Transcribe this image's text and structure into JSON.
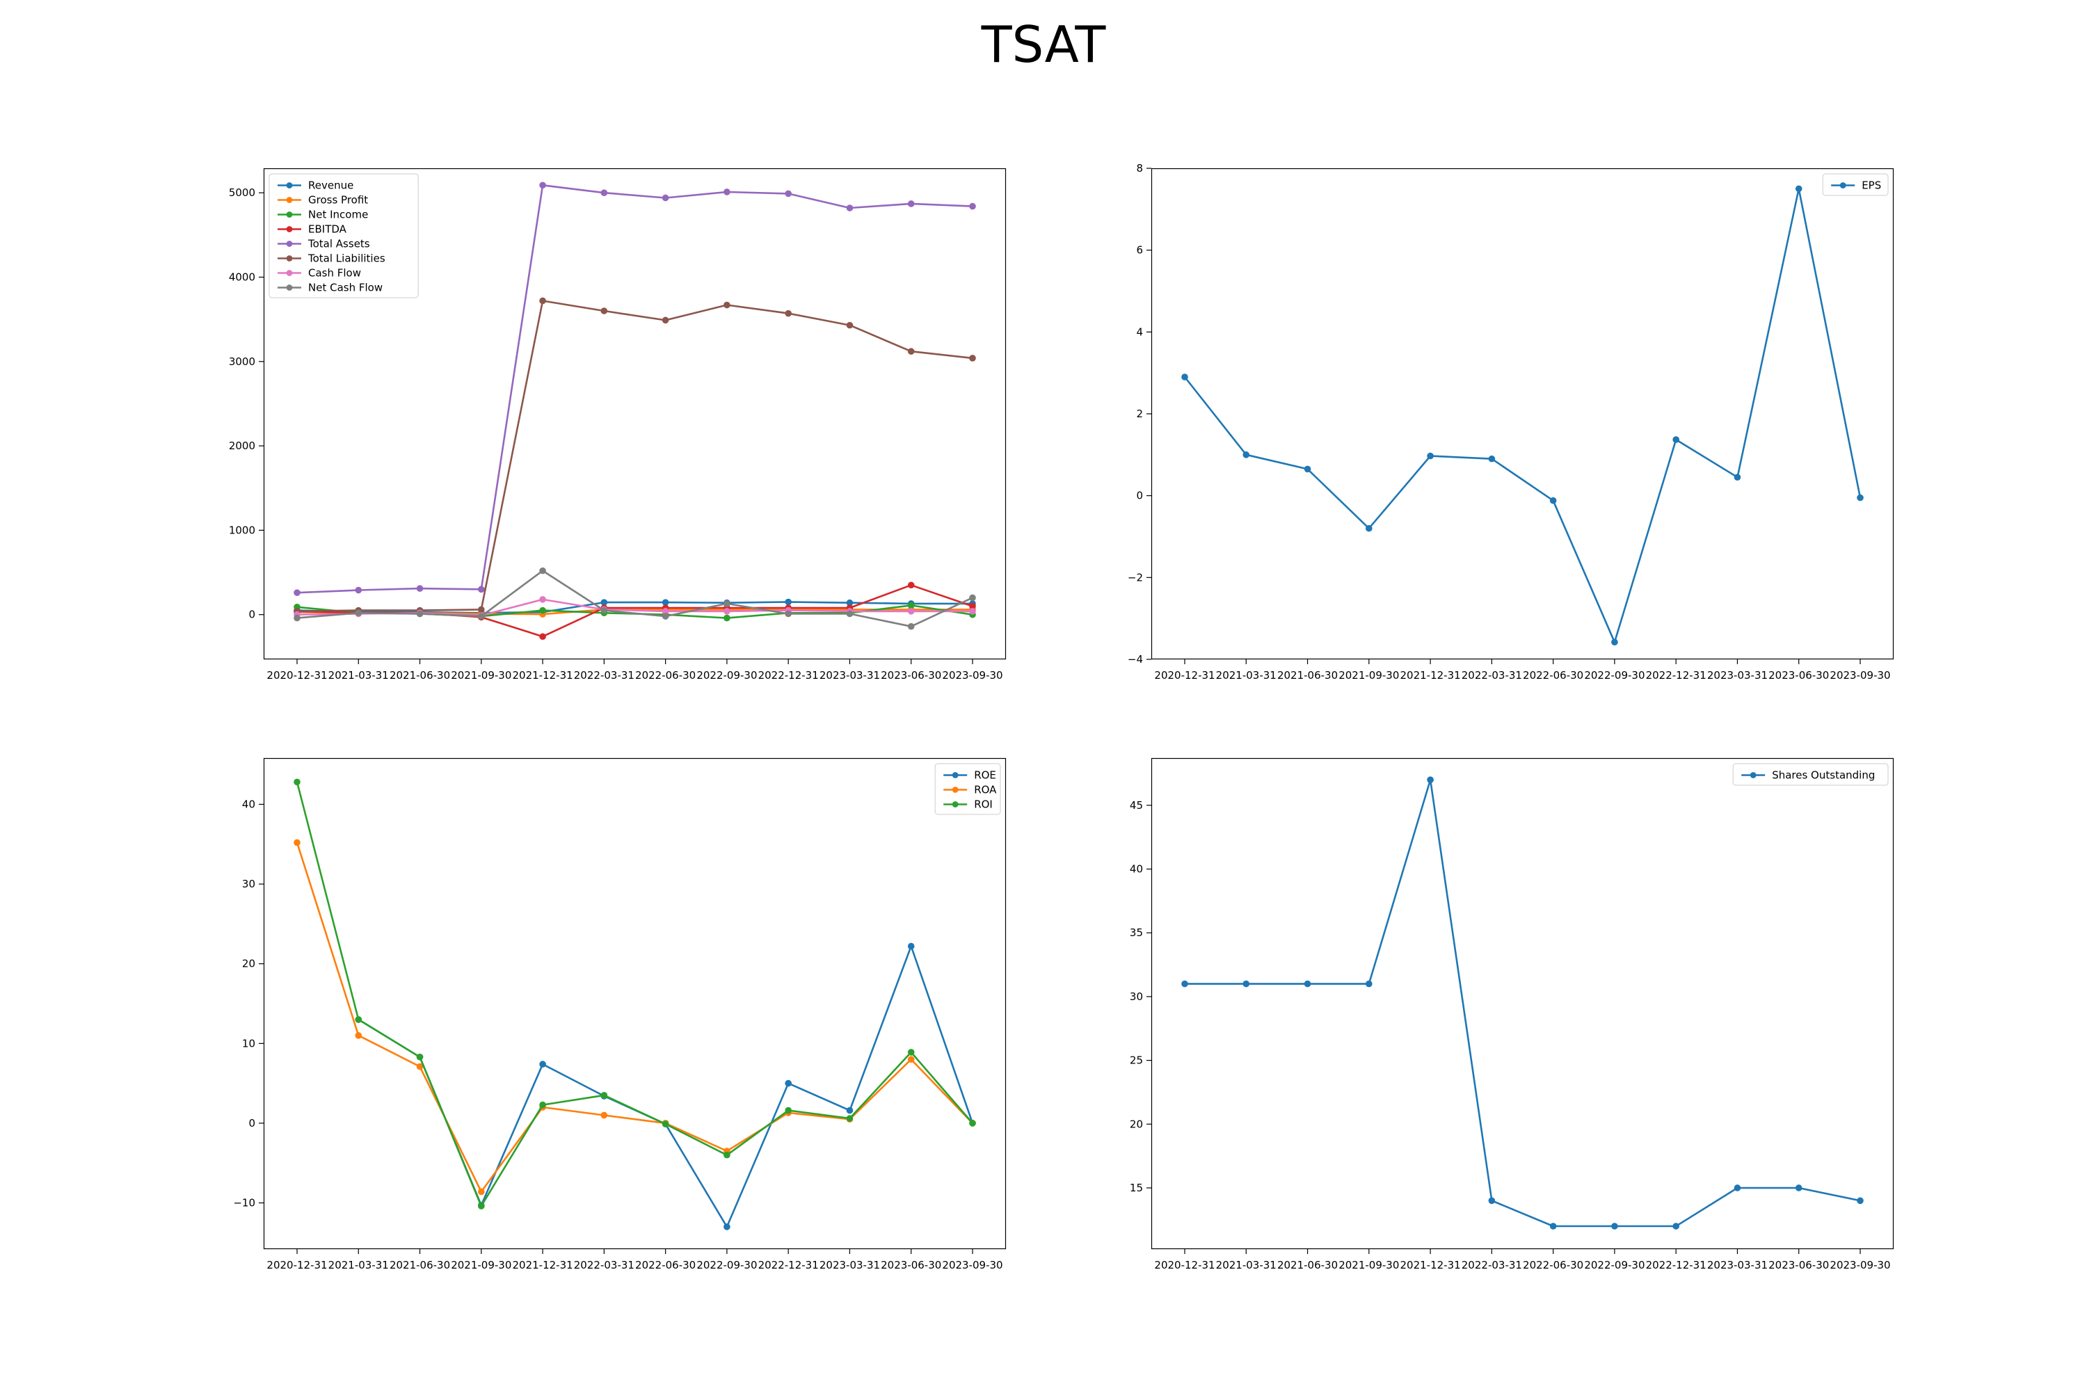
{
  "title": "TSAT",
  "colors": {
    "blue": "#1f77b4",
    "orange": "#ff7f0e",
    "green": "#2ca02c",
    "red": "#d62728",
    "purple": "#9467bd",
    "brown": "#8c564b",
    "pink": "#e377c2",
    "gray": "#7f7f7f"
  },
  "chart_data": [
    {
      "type": "line",
      "x": [
        "2020-12-31",
        "2021-03-31",
        "2021-06-30",
        "2021-09-30",
        "2021-12-31",
        "2022-03-31",
        "2022-06-30",
        "2022-09-30",
        "2022-12-31",
        "2023-03-31",
        "2023-06-30",
        "2023-09-30"
      ],
      "ylim": [
        -530,
        5290
      ],
      "yticks": [
        0,
        1000,
        2000,
        3000,
        4000,
        5000
      ],
      "yticklabels": [
        "0",
        "1000",
        "2000",
        "3000",
        "4000",
        "5000"
      ],
      "legend": "upper left",
      "series": [
        {
          "name": "Revenue",
          "color": "#1f77b4",
          "values": [
            50,
            30,
            30,
            20,
            30,
            145,
            145,
            140,
            150,
            140,
            130,
            130
          ]
        },
        {
          "name": "Gross Profit",
          "color": "#ff7f0e",
          "values": [
            30,
            20,
            20,
            10,
            5,
            60,
            60,
            60,
            60,
            60,
            60,
            60
          ]
        },
        {
          "name": "Net Income",
          "color": "#2ca02c",
          "values": [
            90,
            20,
            10,
            -20,
            50,
            20,
            0,
            -40,
            20,
            20,
            110,
            0
          ]
        },
        {
          "name": "EBITDA",
          "color": "#d62728",
          "values": [
            40,
            20,
            20,
            -30,
            -260,
            80,
            80,
            80,
            80,
            80,
            350,
            100
          ]
        },
        {
          "name": "Total Assets",
          "color": "#9467bd",
          "values": [
            260,
            290,
            310,
            300,
            5090,
            5000,
            4940,
            5010,
            4990,
            4820,
            4870,
            4840
          ]
        },
        {
          "name": "Total Liabilities",
          "color": "#8c564b",
          "values": [
            40,
            50,
            50,
            60,
            3720,
            3600,
            3490,
            3670,
            3570,
            3430,
            3120,
            3040
          ]
        },
        {
          "name": "Cash Flow",
          "color": "#e377c2",
          "values": [
            0,
            10,
            20,
            -10,
            180,
            60,
            40,
            40,
            50,
            40,
            40,
            40
          ]
        },
        {
          "name": "Net Cash Flow",
          "color": "#7f7f7f",
          "values": [
            -40,
            20,
            10,
            -20,
            520,
            50,
            -20,
            130,
            10,
            10,
            -140,
            200
          ]
        }
      ]
    },
    {
      "type": "line",
      "x": [
        "2020-12-31",
        "2021-03-31",
        "2021-06-30",
        "2021-09-30",
        "2021-12-31",
        "2022-03-31",
        "2022-06-30",
        "2022-09-30",
        "2022-12-31",
        "2023-03-31",
        "2023-06-30",
        "2023-09-30"
      ],
      "ylim": [
        -4.0,
        8.0
      ],
      "yticks": [
        -4,
        -2,
        0,
        2,
        4,
        6,
        8
      ],
      "yticklabels": [
        "−4",
        "−2",
        "0",
        "2",
        "4",
        "6",
        "8"
      ],
      "legend": "upper right",
      "series": [
        {
          "name": "EPS",
          "color": "#1f77b4",
          "values": [
            2.9,
            1.0,
            0.65,
            -0.8,
            0.97,
            0.9,
            -0.12,
            -3.58,
            1.37,
            0.45,
            7.5,
            -0.05
          ]
        }
      ]
    },
    {
      "type": "line",
      "x": [
        "2020-12-31",
        "2021-03-31",
        "2021-06-30",
        "2021-09-30",
        "2021-12-31",
        "2022-03-31",
        "2022-06-30",
        "2022-09-30",
        "2022-12-31",
        "2023-03-31",
        "2023-06-30",
        "2023-09-30"
      ],
      "ylim": [
        -15.8,
        45.8
      ],
      "yticks": [
        -10,
        0,
        10,
        20,
        30,
        40
      ],
      "yticklabels": [
        "−10",
        "0",
        "10",
        "20",
        "30",
        "40"
      ],
      "legend": "upper right",
      "series": [
        {
          "name": "ROE",
          "color": "#1f77b4",
          "values": [
            null,
            13,
            8.3,
            -10.3,
            7.4,
            3.4,
            -0.1,
            -13.0,
            5.0,
            1.6,
            22.2,
            0
          ]
        },
        {
          "name": "ROA",
          "color": "#ff7f0e",
          "values": [
            35.2,
            11.0,
            7.1,
            -8.6,
            2.0,
            1.0,
            0.0,
            -3.5,
            1.3,
            0.5,
            8.0,
            0
          ]
        },
        {
          "name": "ROI",
          "color": "#2ca02c",
          "values": [
            42.8,
            13.0,
            8.3,
            -10.4,
            2.3,
            3.5,
            -0.1,
            -4.0,
            1.6,
            0.6,
            8.9,
            0
          ]
        }
      ]
    },
    {
      "type": "line",
      "x": [
        "2020-12-31",
        "2021-03-31",
        "2021-06-30",
        "2021-09-30",
        "2021-12-31",
        "2022-03-31",
        "2022-06-30",
        "2022-09-30",
        "2022-12-31",
        "2023-03-31",
        "2023-06-30",
        "2023-09-30"
      ],
      "ylim": [
        10.2,
        48.7
      ],
      "yticks": [
        15,
        20,
        25,
        30,
        35,
        40,
        45
      ],
      "yticklabels": [
        "15",
        "20",
        "25",
        "30",
        "35",
        "40",
        "45"
      ],
      "legend": "upper right",
      "series": [
        {
          "name": "Shares Outstanding",
          "color": "#1f77b4",
          "values": [
            31,
            31,
            31,
            31,
            47,
            14,
            12,
            12,
            12,
            15,
            15,
            14
          ]
        }
      ]
    }
  ]
}
